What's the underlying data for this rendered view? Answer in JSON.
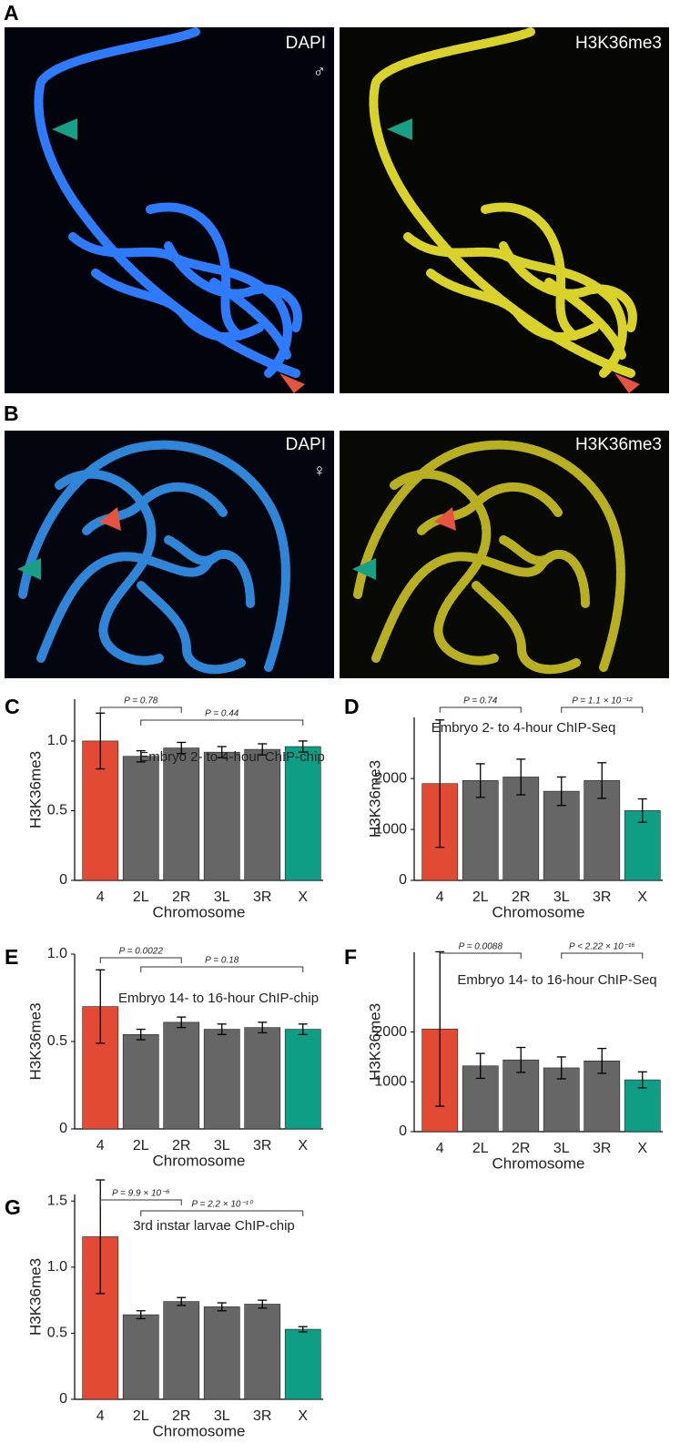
{
  "figure": {
    "panels": [
      {
        "label": "A",
        "images": [
          {
            "stain": "DAPI",
            "sex": "♂"
          },
          {
            "stain": "H3K36me3"
          }
        ]
      },
      {
        "label": "B",
        "images": [
          {
            "stain": "DAPI",
            "sex": "♀"
          },
          {
            "stain": "H3K36me3"
          }
        ]
      }
    ]
  },
  "chart_data": [
    {
      "type": "bar",
      "panel": "C",
      "title": "Embryo 2- to 4-hour ChIP-chip",
      "xlabel": "Chromosome",
      "ylabel": "H3K36me3",
      "categories": [
        "4",
        "2L",
        "2R",
        "3L",
        "3R",
        "X"
      ],
      "values": [
        1.0,
        0.89,
        0.95,
        0.92,
        0.94,
        0.96
      ],
      "errors": [
        0.2,
        0.04,
        0.04,
        0.04,
        0.04,
        0.04
      ],
      "colors": [
        "#e34a33",
        "#666666",
        "#666666",
        "#666666",
        "#666666",
        "#0d9e85"
      ],
      "ylim": [
        0,
        1.3
      ],
      "yticks": [
        0,
        0.5,
        {
          "value": 1,
          "label": "1.0"
        }
      ],
      "annotations": [
        "P = 0.78",
        "P = 0.44"
      ]
    },
    {
      "type": "bar",
      "panel": "D",
      "title": "Embryo 2- to 4-hour ChIP-Seq",
      "xlabel": "Chromosome",
      "ylabel": "H3K36me3",
      "categories": [
        "4",
        "2L",
        "2R",
        "3L",
        "3R",
        "X"
      ],
      "values": [
        1900,
        1960,
        2030,
        1750,
        1960,
        1370
      ],
      "errors": [
        1250,
        330,
        350,
        280,
        350,
        230
      ],
      "colors": [
        "#e34a33",
        "#666666",
        "#666666",
        "#666666",
        "#666666",
        "#0d9e85"
      ],
      "ylim": [
        0,
        3200
      ],
      "yticks": [
        0,
        1000,
        2000
      ],
      "annotations": [
        "P = 0.74",
        "P = 1.1 × 10⁻¹²"
      ]
    },
    {
      "type": "bar",
      "panel": "E",
      "title": "Embryo 14- to 16-hour ChIP-chip",
      "xlabel": "Chromosome",
      "ylabel": "H3K36me3",
      "categories": [
        "4",
        "2L",
        "2R",
        "3L",
        "3R",
        "X"
      ],
      "values": [
        0.7,
        0.54,
        0.61,
        0.57,
        0.58,
        0.57
      ],
      "errors": [
        0.21,
        0.03,
        0.03,
        0.03,
        0.03,
        0.03
      ],
      "colors": [
        "#e34a33",
        "#666666",
        "#666666",
        "#666666",
        "#666666",
        "#0d9e85"
      ],
      "ylim": [
        0,
        1.0
      ],
      "yticks": [
        0,
        0.5,
        {
          "value": 1,
          "label": "1.0"
        }
      ],
      "annotations": [
        "P = 0.0022",
        "P = 0.18"
      ]
    },
    {
      "type": "bar",
      "panel": "F",
      "title": "Embryo 14- to 16-hour ChIP-Seq",
      "xlabel": "Chromosome",
      "ylabel": "H3K36me3",
      "categories": [
        "4",
        "2L",
        "2R",
        "3L",
        "3R",
        "X"
      ],
      "values": [
        2060,
        1320,
        1440,
        1280,
        1420,
        1040
      ],
      "errors": [
        1550,
        250,
        250,
        220,
        250,
        160
      ],
      "colors": [
        "#e34a33",
        "#666666",
        "#666666",
        "#666666",
        "#666666",
        "#0d9e85"
      ],
      "ylim": [
        0,
        3600
      ],
      "yticks": [
        0,
        1000,
        2000
      ],
      "annotations": [
        "P = 0.0088",
        "P < 2.22 × 10⁻¹⁶"
      ]
    },
    {
      "type": "bar",
      "panel": "G",
      "title": "3rd instar larvae ChIP-chip",
      "xlabel": "Chromosome",
      "ylabel": "H3K36me3",
      "categories": [
        "4",
        "2L",
        "2R",
        "3L",
        "3R",
        "X"
      ],
      "values": [
        1.23,
        0.64,
        0.74,
        0.7,
        0.72,
        0.53
      ],
      "errors": [
        0.43,
        0.03,
        0.03,
        0.03,
        0.03,
        0.02
      ],
      "colors": [
        "#e34a33",
        "#666666",
        "#666666",
        "#666666",
        "#666666",
        "#0d9e85"
      ],
      "ylim": [
        0,
        1.55
      ],
      "yticks": [
        0,
        0.5,
        {
          "value": 1,
          "label": "1.0"
        },
        1.5
      ],
      "annotations": [
        "P = 9.9 × 10⁻⁶",
        "P = 2.2 × 10⁻¹⁰"
      ]
    }
  ]
}
